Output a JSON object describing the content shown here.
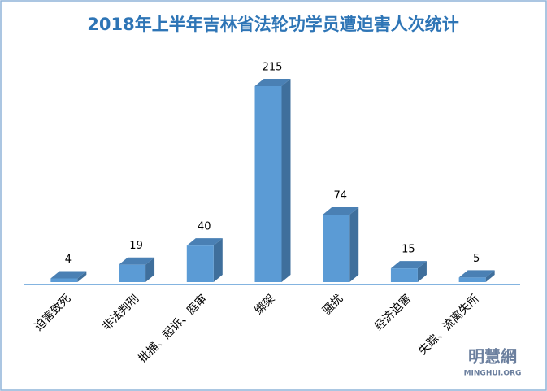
{
  "chart_data": {
    "type": "bar3d",
    "title": "2018年上半年吉林省法轮功学员遭迫害人次统计",
    "categories": [
      "迫害致死",
      "非法判刑",
      "批捕、起诉、庭审",
      "绑架",
      "骚扰",
      "经济迫害",
      "失踪、流离失所"
    ],
    "values": [
      4,
      19,
      40,
      215,
      74,
      15,
      5
    ],
    "color": "#5b9bd5",
    "watermark": "明慧網",
    "watermark_sub": "MINGHUI.ORG"
  }
}
